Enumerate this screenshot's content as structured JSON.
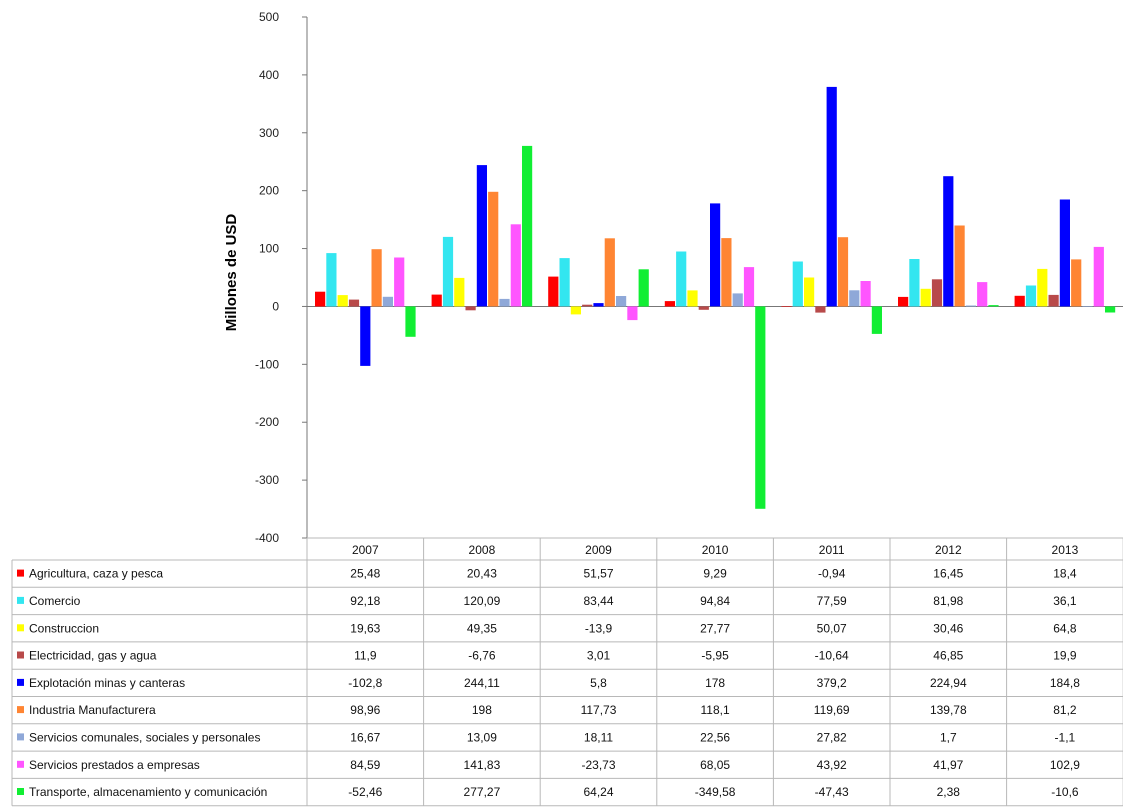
{
  "chart_data": {
    "type": "bar",
    "title": "",
    "xlabel": "",
    "ylabel": "Millones de USD",
    "ylim": [
      -400,
      500
    ],
    "yticks": [
      -400,
      -300,
      -200,
      -100,
      0,
      100,
      200,
      300,
      400,
      500
    ],
    "grid": false,
    "legend": "data table below chart",
    "categories": [
      "2007",
      "2008",
      "2009",
      "2010",
      "2011",
      "2012",
      "2013"
    ],
    "series": [
      {
        "name": "Agricultura, caza y pesca",
        "color": "#ff0000",
        "values": [
          25.48,
          20.43,
          51.57,
          9.29,
          -0.94,
          16.45,
          18.4
        ],
        "labels": [
          "25,48",
          "20,43",
          "51,57",
          "9,29",
          "-0,94",
          "16,45",
          "18,4"
        ]
      },
      {
        "name": "Comercio",
        "color": "#33e6f0",
        "values": [
          92.18,
          120.09,
          83.44,
          94.84,
          77.59,
          81.98,
          36.1
        ],
        "labels": [
          "92,18",
          "120,09",
          "83,44",
          "94,84",
          "77,59",
          "81,98",
          "36,1"
        ]
      },
      {
        "name": "Construccion",
        "color": "#ffff00",
        "values": [
          19.63,
          49.35,
          -13.9,
          27.77,
          50.07,
          30.46,
          64.8
        ],
        "labels": [
          "19,63",
          "49,35",
          "-13,9",
          "27,77",
          "50,07",
          "30,46",
          "64,8"
        ]
      },
      {
        "name": "Electricidad, gas y agua",
        "color": "#b84a4a",
        "values": [
          11.9,
          -6.76,
          3.01,
          -5.95,
          -10.64,
          46.85,
          19.9
        ],
        "labels": [
          "11,9",
          "-6,76",
          "3,01",
          "-5,95",
          "-10,64",
          "46,85",
          "19,9"
        ]
      },
      {
        "name": "Explotación minas y canteras",
        "color": "#0000ff",
        "values": [
          -102.8,
          244.11,
          5.8,
          178,
          379.2,
          224.94,
          184.8
        ],
        "labels": [
          "-102,8",
          "244,11",
          "5,8",
          "178",
          "379,2",
          "224,94",
          "184,8"
        ]
      },
      {
        "name": "Industria Manufacturera",
        "color": "#ff8533",
        "values": [
          98.96,
          198,
          117.73,
          118.1,
          119.69,
          139.78,
          81.2
        ],
        "labels": [
          "98,96",
          "198",
          "117,73",
          "118,1",
          "119,69",
          "139,78",
          "81,2"
        ]
      },
      {
        "name": "Servicios comunales, sociales y personales",
        "color": "#8fa8d8",
        "values": [
          16.67,
          13.09,
          18.11,
          22.56,
          27.82,
          1.7,
          -1.1
        ],
        "labels": [
          "16,67",
          "13,09",
          "18,11",
          "22,56",
          "27,82",
          "1,7",
          "-1,1"
        ]
      },
      {
        "name": "Servicios prestados a empresas",
        "color": "#ff55ff",
        "values": [
          84.59,
          141.83,
          -23.73,
          68.05,
          43.92,
          41.97,
          102.9
        ],
        "labels": [
          "84,59",
          "141,83",
          "-23,73",
          "68,05",
          "43,92",
          "41,97",
          "102,9"
        ]
      },
      {
        "name": "Transporte, almacenamiento y comunicación",
        "color": "#11ee33",
        "values": [
          -52.46,
          277.27,
          64.24,
          -349.58,
          -47.43,
          2.38,
          -10.6
        ],
        "labels": [
          "-52,46",
          "277,27",
          "64,24",
          "-349,58",
          "-47,43",
          "2,38",
          "-10,6"
        ]
      }
    ]
  }
}
